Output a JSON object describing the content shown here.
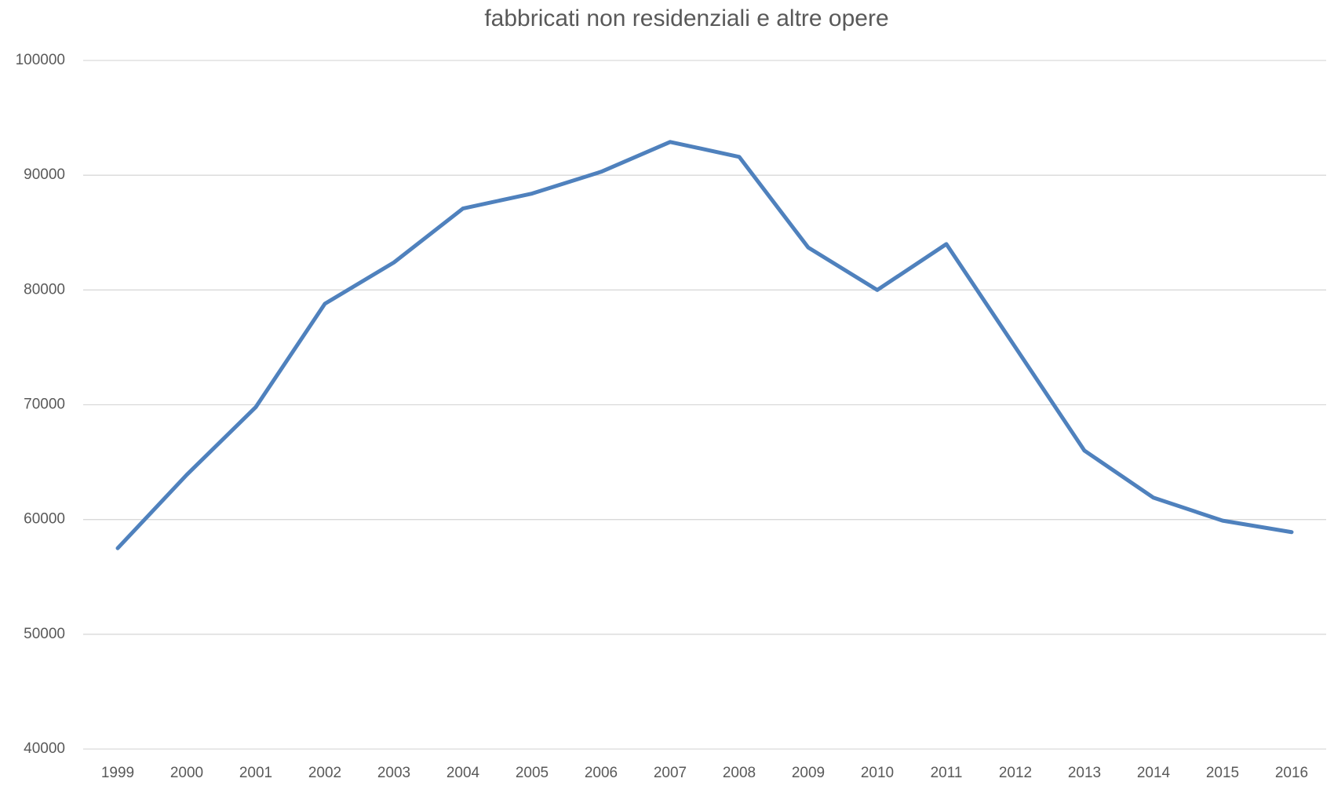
{
  "chart_data": {
    "type": "line",
    "title": "fabbricati non residenziali e altre opere",
    "categories": [
      "1999",
      "2000",
      "2001",
      "2002",
      "2003",
      "2004",
      "2005",
      "2006",
      "2007",
      "2008",
      "2009",
      "2010",
      "2011",
      "2012",
      "2013",
      "2014",
      "2015",
      "2016"
    ],
    "values": [
      57500,
      63900,
      69800,
      78800,
      82400,
      87100,
      88400,
      90300,
      92900,
      91600,
      83700,
      80000,
      84000,
      75000,
      66000,
      61900,
      59900,
      58900
    ],
    "color": "#4f81bd",
    "ylim": [
      40000,
      100000
    ],
    "yticks": [
      40000,
      50000,
      60000,
      70000,
      80000,
      90000,
      100000
    ],
    "grid": true
  }
}
